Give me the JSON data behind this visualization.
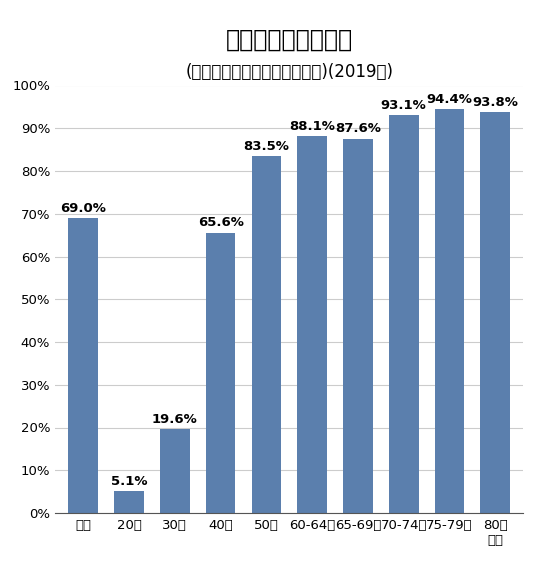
{
  "title": "固定電話の保有状況",
  "subtitle": "(世帯単位、世帯主年齢階層別)(2019年)",
  "categories": [
    "全体",
    "20代",
    "30代",
    "40代",
    "50代",
    "60-64歳",
    "65-69歳",
    "70-74歳",
    "75-79歳",
    "80歳\n以上"
  ],
  "values": [
    69.0,
    5.1,
    19.6,
    65.6,
    83.5,
    88.1,
    87.6,
    93.1,
    94.4,
    93.8
  ],
  "labels": [
    "69.0%",
    "5.1%",
    "19.6%",
    "65.6%",
    "83.5%",
    "88.1%",
    "87.6%",
    "93.1%",
    "94.4%",
    "93.8%"
  ],
  "bar_color": "#5b7fad",
  "background_color": "#ffffff",
  "ylim": [
    0,
    100
  ],
  "yticks": [
    0,
    10,
    20,
    30,
    40,
    50,
    60,
    70,
    80,
    90,
    100
  ],
  "ytick_labels": [
    "0%",
    "10%",
    "20%",
    "30%",
    "40%",
    "50%",
    "60%",
    "70%",
    "80%",
    "90%",
    "100%"
  ],
  "title_fontsize": 17,
  "subtitle_fontsize": 12,
  "label_fontsize": 9.5,
  "tick_fontsize": 9.5
}
